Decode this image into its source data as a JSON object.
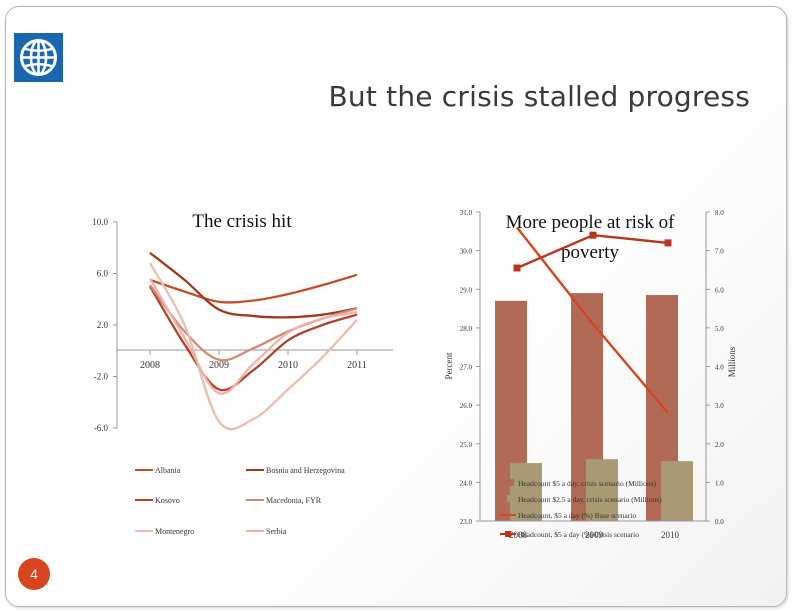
{
  "slide": {
    "title": "But the crisis stalled progress",
    "page_number": "4",
    "logo_icon": "globe-logo-icon",
    "colors": {
      "accent": "#d7451f",
      "logo": "#1a66b0"
    }
  },
  "chart_data": [
    {
      "type": "line",
      "title": "The crisis hit",
      "categories": [
        "2008",
        "2009",
        "2010",
        "2011"
      ],
      "y_ticks": [
        "10.0",
        "6.0",
        "2.0",
        "-2.0",
        "-6.0"
      ],
      "ylim": [
        -6,
        10
      ],
      "series": [
        {
          "name": "Albania",
          "color": "#c0502a",
          "x": [
            0.0,
            0.5,
            1.0,
            1.5,
            2.0,
            2.5,
            3.0
          ],
          "values": [
            5.5,
            4.6,
            3.8,
            3.9,
            4.4,
            5.1,
            5.9
          ]
        },
        {
          "name": "Bosnia and Herzegovina",
          "color": "#9e3b1c",
          "x": [
            0.0,
            0.5,
            1.0,
            1.5,
            2.0,
            2.5,
            3.0
          ],
          "values": [
            7.6,
            5.5,
            3.2,
            2.7,
            2.6,
            2.8,
            3.3
          ]
        },
        {
          "name": "Kosovo",
          "color": "#b5402a",
          "x": [
            0.0,
            0.5,
            1.0,
            1.5,
            2.0,
            2.5,
            3.0
          ],
          "values": [
            5.0,
            0.5,
            -3.0,
            -1.5,
            0.8,
            2.0,
            2.8
          ]
        },
        {
          "name": "Macedonia, FYR",
          "color": "#d08a77",
          "x": [
            0.0,
            0.5,
            1.0,
            1.5,
            2.0,
            2.5,
            3.0
          ],
          "values": [
            5.1,
            1.5,
            -0.7,
            0.2,
            1.5,
            2.5,
            3.3
          ]
        },
        {
          "name": "Montenegro",
          "color": "#e6bfb0",
          "x": [
            0.0,
            0.5,
            1.0,
            1.5,
            2.0,
            2.5,
            3.0
          ],
          "values": [
            6.8,
            2.0,
            -5.5,
            -5.3,
            -3.0,
            -0.5,
            2.4
          ]
        },
        {
          "name": "Serbia",
          "color": "#efb1aa",
          "x": [
            0.0,
            0.5,
            1.0,
            1.5,
            2.0,
            2.5,
            3.0
          ],
          "values": [
            5.6,
            1.0,
            -3.3,
            -1.0,
            1.4,
            2.5,
            3.0
          ]
        }
      ]
    },
    {
      "type": "bar",
      "title": "More people at risk of poverty",
      "categories": [
        "2008",
        "2009",
        "2010"
      ],
      "ylabel": "Percent",
      "ylabel_right": "Millions",
      "ylim": [
        23,
        31
      ],
      "ylim_right": [
        0,
        8
      ],
      "y_ticks": [
        "31.0",
        "30.0",
        "29.0",
        "28.0",
        "27.0",
        "26.0",
        "25.0",
        "24.0",
        "23.0"
      ],
      "y_ticks_right": [
        "8.0",
        "7.0",
        "6.0",
        "5.0",
        "4.0",
        "3.0",
        "2.0",
        "1.0",
        "0.0"
      ],
      "series": [
        {
          "name": "Headcount $5 a day, crisis scenario (Millions)",
          "kind": "bar",
          "axis": "right",
          "color": "#b06a56",
          "values": [
            5.7,
            5.9,
            5.85
          ]
        },
        {
          "name": "Headcount $2.5 a day, crisis scenario (Millions)",
          "kind": "bar",
          "axis": "right",
          "color": "#a89a72",
          "values": [
            1.5,
            1.6,
            1.55
          ]
        },
        {
          "name": "Headcount, $5 a day (%) Base scenario",
          "kind": "line",
          "axis": "left",
          "color": "#d7451f",
          "values": [
            30.6,
            28.1,
            25.8
          ]
        },
        {
          "name": "Headcount, $5 a day (%) Crisis scenario",
          "kind": "line-markers",
          "axis": "left",
          "color": "#b8361c",
          "values": [
            29.55,
            30.4,
            30.2
          ]
        }
      ]
    }
  ]
}
